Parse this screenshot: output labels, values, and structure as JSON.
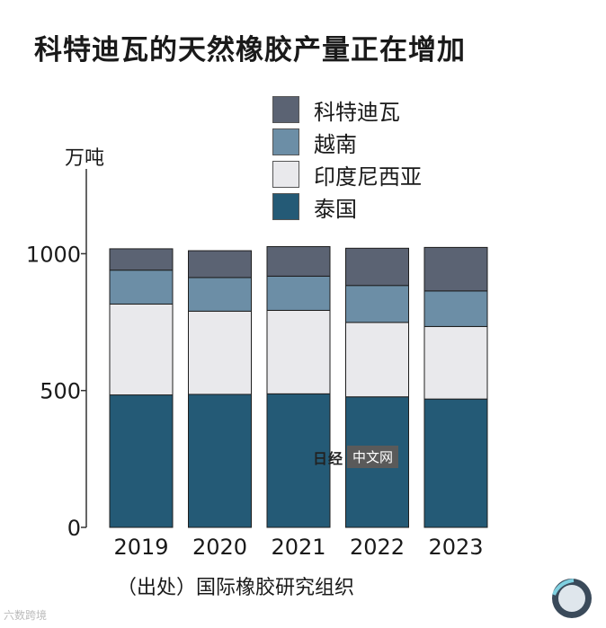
{
  "title": "科特迪瓦的天然橡胶产量正在增加",
  "source": "（出处）国际橡胶研究组织",
  "watermark": {
    "logo": "日经",
    "text": "中文网"
  },
  "corner_mark": "六数跨境",
  "colors": {
    "科特迪瓦": "#5b6373",
    "越南": "#6c8ea6",
    "印度尼西亚": "#e9e9ec",
    "泰国": "#245a76"
  },
  "chart_data": {
    "type": "bar",
    "stacked": true,
    "title": "科特迪瓦的天然橡胶产量正在增加",
    "ylabel": "万吨",
    "xlabel": "",
    "categories": [
      "2019",
      "2020",
      "2021",
      "2022",
      "2023"
    ],
    "ylim": [
      0,
      1300
    ],
    "yticks": [
      0,
      500,
      1000
    ],
    "grid": false,
    "legend_position": "top-right",
    "series": [
      {
        "name": "泰国",
        "values": [
          484,
          486,
          488,
          477,
          469
        ]
      },
      {
        "name": "印度尼西亚",
        "values": [
          332,
          304,
          305,
          272,
          265
        ]
      },
      {
        "name": "越南",
        "values": [
          124,
          123,
          125,
          135,
          130
        ]
      },
      {
        "name": "科特迪瓦",
        "values": [
          78,
          98,
          108,
          136,
          159
        ]
      }
    ]
  }
}
